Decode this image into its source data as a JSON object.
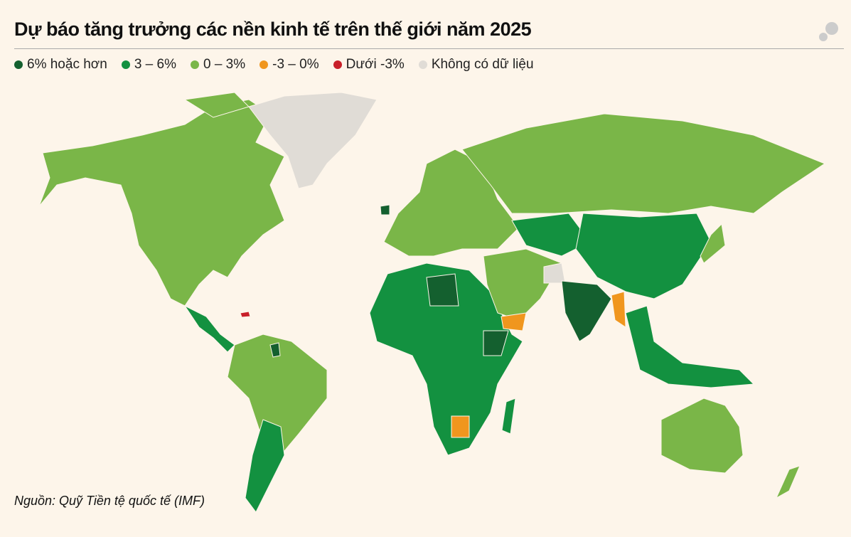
{
  "header": {
    "title": "Dự báo tăng trưởng các nền kinh tế trên thế giới năm 2025"
  },
  "legend": [
    {
      "label": "6% hoặc hơn",
      "color": "#14602f"
    },
    {
      "label": "3 – 6%",
      "color": "#139140"
    },
    {
      "label": "0 – 3%",
      "color": "#7ab648"
    },
    {
      "label": "-3 – 0%",
      "color": "#f0961e"
    },
    {
      "label": "Dưới -3%",
      "color": "#c8202a"
    },
    {
      "label": "Không có dữ liệu",
      "color": "#e0dcd6"
    }
  ],
  "source": "Nguồn: Quỹ Tiền tệ quốc tế (IMF)"
}
